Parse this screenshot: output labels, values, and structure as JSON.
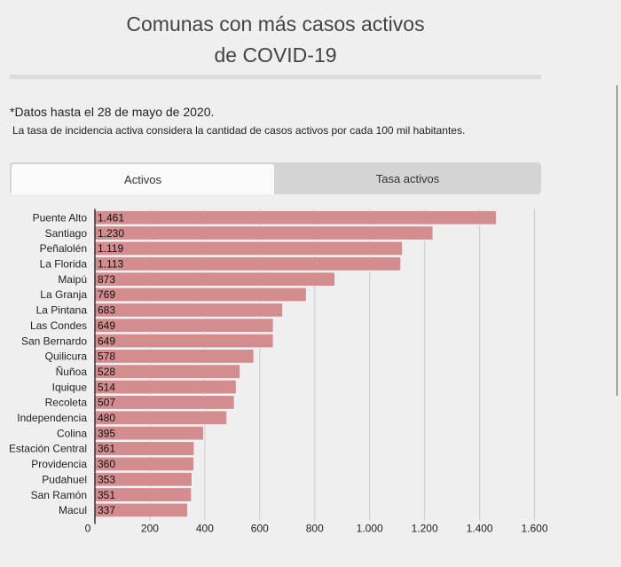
{
  "title_line1": "Comunas con más casos activos",
  "title_line2": "de COVID-19",
  "note_main": "*Datos hasta el 28 de mayo de 2020.",
  "note_sub": "La tasa de incidencia activa considera la cantidad de casos activos por cada 100 mil habitantes.",
  "tabs": [
    {
      "label": "Activos",
      "active": true
    },
    {
      "label": "Tasa activos",
      "active": false
    }
  ],
  "colors": {
    "bar": "#d38d8e",
    "bar_edge": "#ffffff",
    "grid": "#cccccc",
    "axis": "#333333"
  },
  "chart_data": {
    "type": "bar",
    "orientation": "horizontal",
    "title": "",
    "xlabel": "",
    "ylabel": "",
    "xlim": [
      0,
      1600
    ],
    "ticks": [
      0,
      200,
      400,
      600,
      800,
      1000,
      1200,
      1400,
      1600
    ],
    "tick_labels": [
      "0",
      "200",
      "400",
      "600",
      "800",
      "1.000",
      "1.200",
      "1.400",
      "1.600"
    ],
    "grid": true,
    "categories": [
      "Puente Alto",
      "Santiago",
      "Peñalolén",
      "La Florida",
      "Maipú",
      "La Granja",
      "La Pintana",
      "Las Condes",
      "San Bernardo",
      "Quilicura",
      "Ñuñoa",
      "Iquique",
      "Recoleta",
      "Independencia",
      "Colina",
      "Estación Central",
      "Providencia",
      "Pudahuel",
      "San Ramón",
      "Macul"
    ],
    "values": [
      1461,
      1230,
      1119,
      1113,
      873,
      769,
      683,
      649,
      649,
      578,
      528,
      514,
      507,
      480,
      395,
      361,
      360,
      353,
      351,
      337
    ],
    "value_labels": [
      "1.461",
      "1.230",
      "1.119",
      "1.113",
      "873",
      "769",
      "683",
      "649",
      "649",
      "578",
      "528",
      "514",
      "507",
      "480",
      "395",
      "361",
      "360",
      "353",
      "351",
      "337"
    ]
  }
}
